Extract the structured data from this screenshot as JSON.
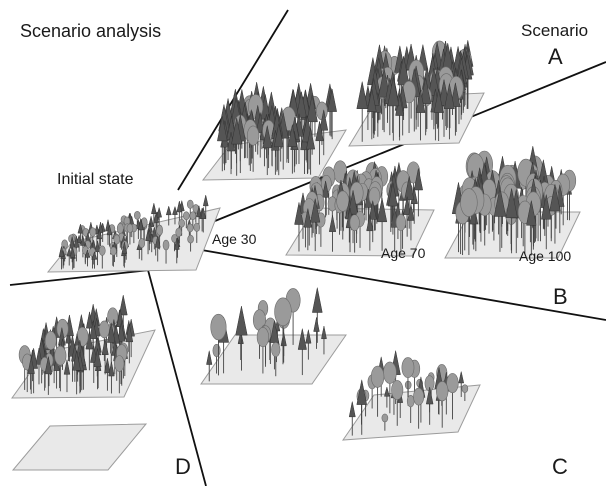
{
  "title": "Scenario analysis",
  "scenario_heading": "Scenario",
  "initial_state_label": "Initial state",
  "age_labels": [
    "Age 30",
    "Age 70",
    "Age 100"
  ],
  "scenario_letters": {
    "a": "A",
    "b": "B",
    "c": "C",
    "d": "D"
  },
  "colors": {
    "conifer": "#555555",
    "broadleaf": "#9a9a9a",
    "trunk": "#444444",
    "plot": "#e9e9e9",
    "plot_edge": "#9c9c9c",
    "divider": "#111111"
  }
}
